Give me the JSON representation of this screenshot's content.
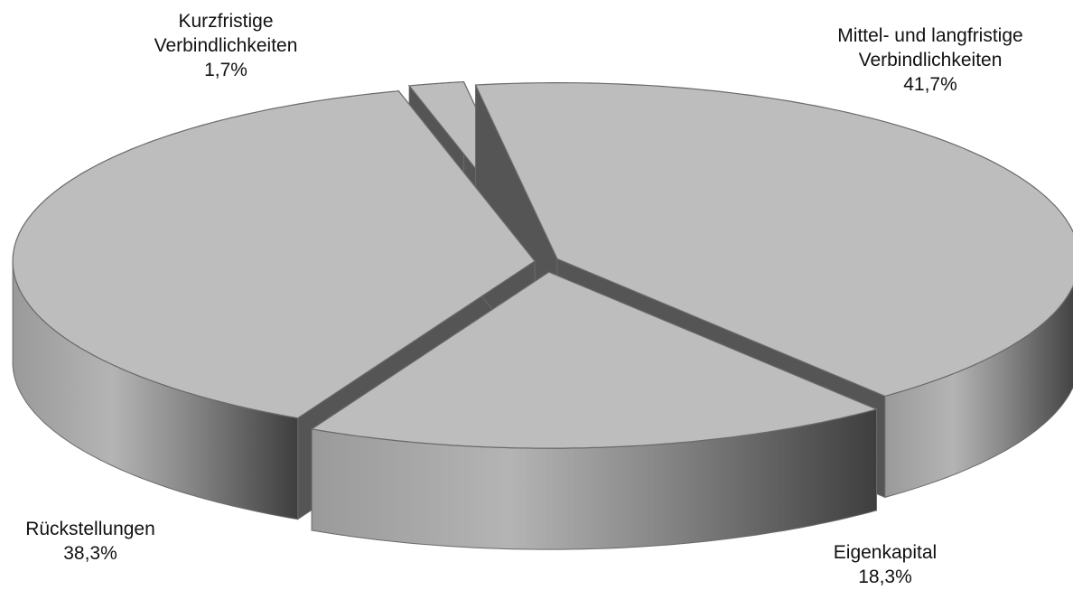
{
  "chart_data": {
    "type": "pie",
    "style": "3d-exploded",
    "title": "",
    "slices": [
      {
        "name_lines": [
          "Mittel- und langfristige",
          "Verbindlichkeiten"
        ],
        "value": 41.7,
        "value_label": "41,7%"
      },
      {
        "name_lines": [
          "Eigenkapital"
        ],
        "value": 18.3,
        "value_label": "18,3%"
      },
      {
        "name_lines": [
          "Rückstellungen"
        ],
        "value": 38.3,
        "value_label": "38,3%"
      },
      {
        "name_lines": [
          "Kurzfristige",
          "Verbindlichkeiten"
        ],
        "value": 1.7,
        "value_label": "1,7%"
      }
    ],
    "colors": {
      "top": "#bdbdbd",
      "side_light": "#a8a8a8",
      "side_dark": "#4a4a4a",
      "inner_face": "#555555",
      "outline": "#6a6a6a"
    }
  }
}
